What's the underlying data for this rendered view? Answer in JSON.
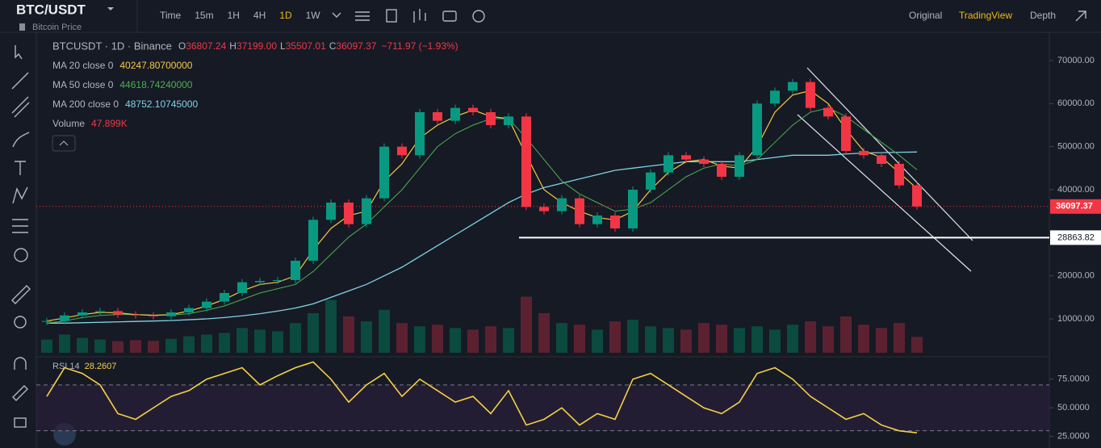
{
  "header": {
    "symbol": "BTC/USDT",
    "subtitle": "Bitcoin Price",
    "timeframes": [
      "Time",
      "15m",
      "1H",
      "4H",
      "1D",
      "1W"
    ],
    "active_timeframe": 4,
    "views": [
      "Original",
      "TradingView",
      "Depth"
    ],
    "active_view": 1
  },
  "legend": {
    "title": "BTCUSDT · 1D · Binance",
    "ohlc": [
      {
        "label": "O",
        "value": "36807.24"
      },
      {
        "label": "H",
        "value": "37199.00"
      },
      {
        "label": "L",
        "value": "35507.01"
      },
      {
        "label": "C",
        "value": "36097.37"
      }
    ],
    "change": "−711.97 (−1.93%)",
    "indicators": [
      {
        "name": "MA 20 close 0",
        "value": "40247.80700000",
        "color": "#f5c842"
      },
      {
        "name": "MA 50 close 0",
        "value": "44618.74240000",
        "color": "#4caf50"
      },
      {
        "name": "MA 200 close 0",
        "value": "48752.10745000",
        "color": "#7fd3e6"
      },
      {
        "name": "Volume",
        "value": "47.899K",
        "color": "#f23645"
      }
    ]
  },
  "chart": {
    "ylim": [
      2125,
      76560
    ],
    "yticks": [
      {
        "value": 70000,
        "label": "70000.00"
      },
      {
        "value": 60000,
        "label": "60000.00"
      },
      {
        "value": 50000,
        "label": "50000.00"
      },
      {
        "value": 40000,
        "label": "40000.00"
      },
      {
        "value": 20000,
        "label": "20000.00"
      },
      {
        "value": 10000,
        "label": "10000.00"
      }
    ],
    "last_price": {
      "value": 36097.37,
      "label": "36097.37"
    },
    "support": {
      "value": 28863.82,
      "label": "28863.82"
    },
    "closes": [
      9500,
      10800,
      11500,
      11800,
      11000,
      10800,
      10600,
      11500,
      12500,
      14000,
      16000,
      18500,
      18800,
      19000,
      23500,
      33000,
      37000,
      32000,
      38000,
      50000,
      48000,
      58000,
      56000,
      59000,
      58000,
      55000,
      57000,
      36000,
      35000,
      38000,
      32000,
      34000,
      31000,
      40000,
      44000,
      48000,
      47000,
      46000,
      43000,
      48000,
      60000,
      63000,
      65000,
      59000,
      57000,
      49000,
      48000,
      46000,
      41000,
      36097.37
    ],
    "ma20": [
      9500,
      10200,
      11000,
      11500,
      11400,
      11000,
      10800,
      11000,
      11800,
      13000,
      14500,
      16500,
      18000,
      18500,
      20000,
      26000,
      31000,
      34000,
      35000,
      42000,
      46000,
      52000,
      55000,
      57000,
      58500,
      57000,
      56500,
      48000,
      40000,
      37000,
      35000,
      33500,
      33000,
      35000,
      40000,
      44000,
      46500,
      47000,
      45500,
      45000,
      50000,
      58000,
      62000,
      63000,
      60000,
      54000,
      49000,
      47500,
      44000,
      40247.8
    ],
    "ma50": [
      9000,
      9500,
      10300,
      10800,
      11000,
      11000,
      10900,
      10900,
      11200,
      12000,
      13000,
      14500,
      16000,
      17000,
      18000,
      21000,
      25000,
      29000,
      32000,
      36000,
      40000,
      45000,
      50000,
      53000,
      55000,
      56500,
      56500,
      52000,
      47000,
      42000,
      39000,
      37000,
      35000,
      35500,
      37000,
      40000,
      43000,
      45000,
      46000,
      45500,
      47000,
      51000,
      55000,
      58000,
      59000,
      57000,
      54000,
      51000,
      48000,
      44618.74
    ],
    "ma200": [
      9000,
      9000,
      9100,
      9200,
      9300,
      9400,
      9500,
      9600,
      9800,
      10000,
      10300,
      10700,
      11200,
      11800,
      12500,
      13500,
      15000,
      16500,
      18000,
      20000,
      22000,
      24500,
      27000,
      29500,
      32000,
      34500,
      37000,
      39000,
      40500,
      41500,
      42500,
      43500,
      44500,
      45000,
      45500,
      46000,
      46500,
      46500,
      46500,
      46500,
      47000,
      47500,
      48000,
      48000,
      48000,
      48300,
      48500,
      48600,
      48700,
      48752.11
    ],
    "volume_lim": [
      0,
      220
    ],
    "volumes": [
      40,
      55,
      45,
      40,
      35,
      38,
      36,
      42,
      50,
      55,
      60,
      75,
      70,
      65,
      90,
      120,
      160,
      110,
      95,
      130,
      90,
      80,
      85,
      75,
      70,
      80,
      75,
      170,
      120,
      90,
      85,
      70,
      95,
      100,
      80,
      75,
      70,
      90,
      85,
      75,
      80,
      70,
      85,
      95,
      80,
      110,
      85,
      75,
      90,
      47.899
    ]
  },
  "rsi": {
    "title": "RSI 14",
    "value": "28.2607",
    "ylim": [
      15,
      91
    ],
    "yticks": [
      {
        "value": 75,
        "label": "75.0000"
      },
      {
        "value": 50,
        "label": "50.0000"
      },
      {
        "value": 25,
        "label": "25.0000"
      }
    ],
    "bands": [
      70,
      30
    ],
    "values": [
      60,
      85,
      80,
      70,
      45,
      40,
      50,
      60,
      65,
      75,
      80,
      85,
      70,
      78,
      85,
      90,
      75,
      55,
      70,
      80,
      60,
      75,
      65,
      55,
      60,
      45,
      65,
      35,
      40,
      50,
      35,
      45,
      40,
      75,
      80,
      70,
      60,
      50,
      45,
      55,
      80,
      85,
      75,
      60,
      50,
      40,
      45,
      35,
      30,
      28.2607
    ]
  }
}
